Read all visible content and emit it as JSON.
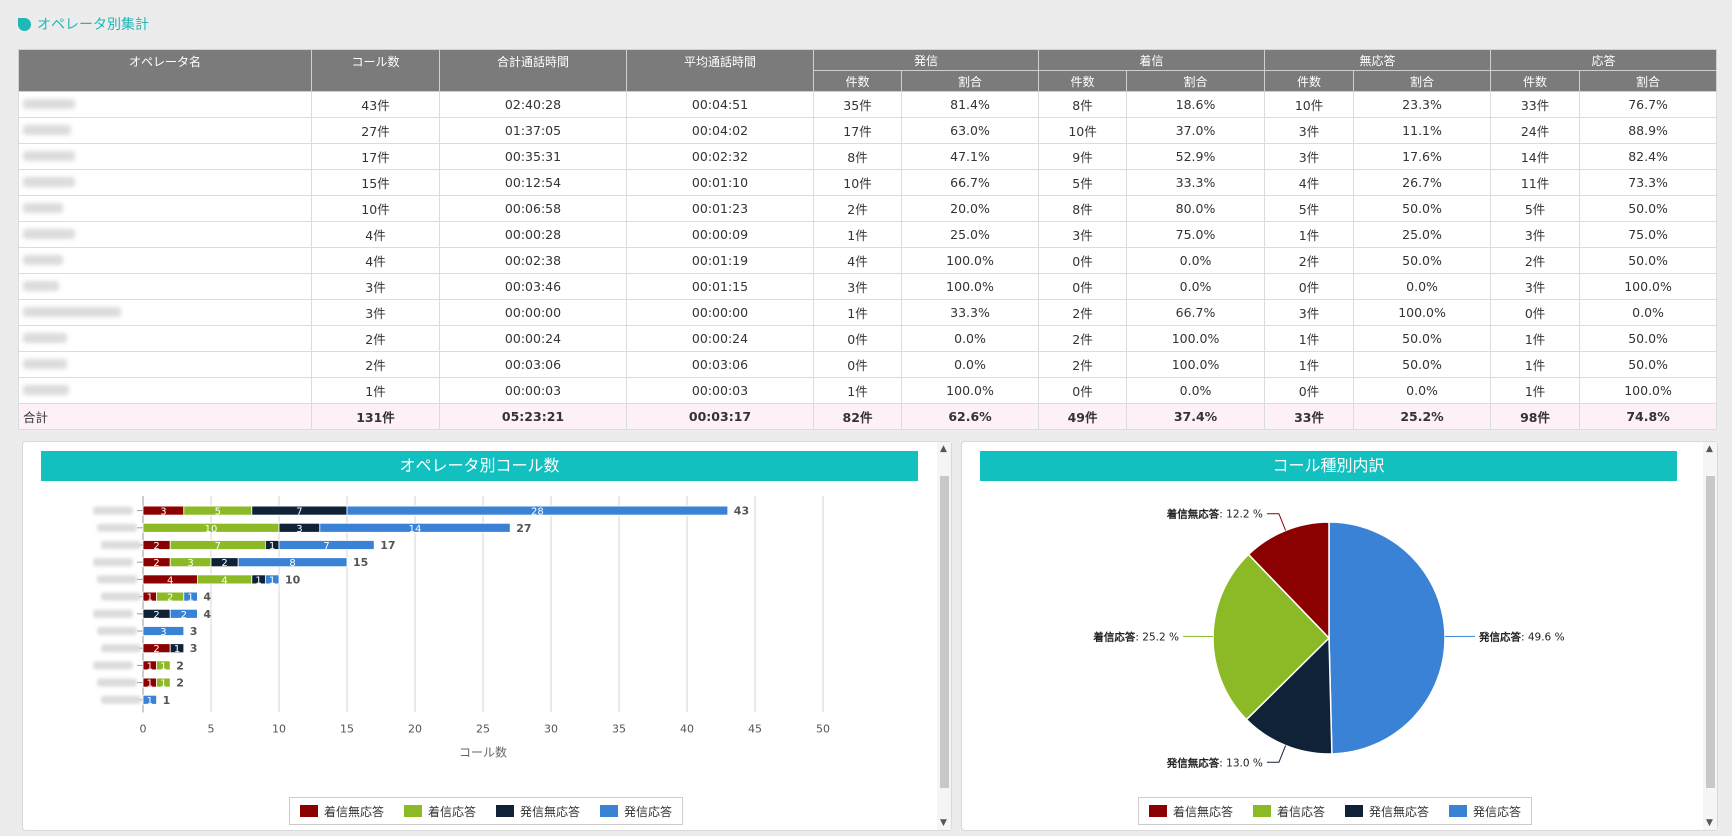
{
  "section_title": "オペレータ別集計",
  "table": {
    "h_name": "オペレータ名",
    "h_calls": "コール数",
    "h_total_time": "合計通話時間",
    "h_avg_time": "平均通話時間",
    "groups": [
      "発信",
      "着信",
      "無応答",
      "応答"
    ],
    "sub_count": "件数",
    "sub_ratio": "割合",
    "rows": [
      [
        "43件",
        "02:40:28",
        "00:04:51",
        "35件",
        "81.4%",
        "8件",
        "18.6%",
        "10件",
        "23.3%",
        "33件",
        "76.7%"
      ],
      [
        "27件",
        "01:37:05",
        "00:04:02",
        "17件",
        "63.0%",
        "10件",
        "37.0%",
        "3件",
        "11.1%",
        "24件",
        "88.9%"
      ],
      [
        "17件",
        "00:35:31",
        "00:02:32",
        "8件",
        "47.1%",
        "9件",
        "52.9%",
        "3件",
        "17.6%",
        "14件",
        "82.4%"
      ],
      [
        "15件",
        "00:12:54",
        "00:01:10",
        "10件",
        "66.7%",
        "5件",
        "33.3%",
        "4件",
        "26.7%",
        "11件",
        "73.3%"
      ],
      [
        "10件",
        "00:06:58",
        "00:01:23",
        "2件",
        "20.0%",
        "8件",
        "80.0%",
        "5件",
        "50.0%",
        "5件",
        "50.0%"
      ],
      [
        "4件",
        "00:00:28",
        "00:00:09",
        "1件",
        "25.0%",
        "3件",
        "75.0%",
        "1件",
        "25.0%",
        "3件",
        "75.0%"
      ],
      [
        "4件",
        "00:02:38",
        "00:01:19",
        "4件",
        "100.0%",
        "0件",
        "0.0%",
        "2件",
        "50.0%",
        "2件",
        "50.0%"
      ],
      [
        "3件",
        "00:03:46",
        "00:01:15",
        "3件",
        "100.0%",
        "0件",
        "0.0%",
        "0件",
        "0.0%",
        "3件",
        "100.0%"
      ],
      [
        "3件",
        "00:00:00",
        "00:00:00",
        "1件",
        "33.3%",
        "2件",
        "66.7%",
        "3件",
        "100.0%",
        "0件",
        "0.0%"
      ],
      [
        "2件",
        "00:00:24",
        "00:00:24",
        "0件",
        "0.0%",
        "2件",
        "100.0%",
        "1件",
        "50.0%",
        "1件",
        "50.0%"
      ],
      [
        "2件",
        "00:03:06",
        "00:03:06",
        "0件",
        "0.0%",
        "2件",
        "100.0%",
        "1件",
        "50.0%",
        "1件",
        "50.0%"
      ],
      [
        "1件",
        "00:00:03",
        "00:00:03",
        "1件",
        "100.0%",
        "0件",
        "0.0%",
        "0件",
        "0.0%",
        "1件",
        "100.0%"
      ]
    ],
    "total_label": "合計",
    "total": [
      "131件",
      "05:23:21",
      "00:03:17",
      "82件",
      "62.6%",
      "49件",
      "37.4%",
      "33件",
      "25.2%",
      "98件",
      "74.8%"
    ]
  },
  "chart_data": [
    {
      "type": "bar",
      "orientation": "horizontal",
      "stacked": true,
      "title": "オペレータ別コール数",
      "xlabel": "コール数",
      "ylabel": "",
      "xlim": [
        0,
        50
      ],
      "xticks": [
        0,
        5,
        10,
        15,
        20,
        25,
        30,
        35,
        40,
        45,
        50
      ],
      "grid": true,
      "legend_position": "bottom",
      "categories": [
        "",
        "",
        "",
        "",
        "",
        "",
        "",
        "",
        "",
        "",
        "",
        ""
      ],
      "series": [
        {
          "name": "着信無応答",
          "color": "#8b0000",
          "values": [
            3,
            0,
            2,
            2,
            4,
            1,
            0,
            0,
            2,
            1,
            1,
            0
          ]
        },
        {
          "name": "着信応答",
          "color": "#8cba26",
          "values": [
            5,
            10,
            7,
            3,
            4,
            2,
            0,
            0,
            0,
            1,
            1,
            0
          ]
        },
        {
          "name": "発信無応答",
          "color": "#0f2238",
          "values": [
            7,
            3,
            1,
            2,
            1,
            0,
            2,
            0,
            1,
            0,
            0,
            0
          ]
        },
        {
          "name": "発信応答",
          "color": "#3a82d6",
          "values": [
            28,
            14,
            7,
            8,
            1,
            1,
            2,
            3,
            0,
            0,
            0,
            1
          ]
        }
      ],
      "totals": [
        43,
        27,
        17,
        15,
        10,
        4,
        4,
        3,
        3,
        2,
        2,
        1
      ]
    },
    {
      "type": "pie",
      "title": "コール種別内訳",
      "legend_position": "bottom",
      "slices": [
        {
          "name": "着信無応答",
          "value": 12.2,
          "label": "着信無応答",
          "pct": ": 12.2 %",
          "color": "#8b0000"
        },
        {
          "name": "着信応答",
          "value": 25.2,
          "label": "着信応答",
          "pct": ": 25.2 %",
          "color": "#8cba26"
        },
        {
          "name": "発信無応答",
          "value": 13.0,
          "label": "発信無応答",
          "pct": ": 13.0 %",
          "color": "#0f2238"
        },
        {
          "name": "発信応答",
          "value": 49.6,
          "label": "発信応答",
          "pct": ": 49.6 %",
          "color": "#3a82d6"
        }
      ]
    }
  ]
}
